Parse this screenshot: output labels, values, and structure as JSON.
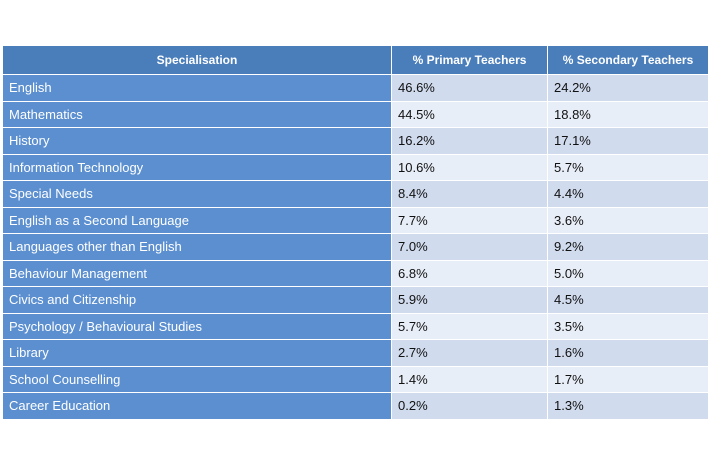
{
  "chart_data": {
    "type": "table",
    "columns": [
      "Specialisation",
      "% Primary Teachers",
      "% Secondary Teachers"
    ],
    "rows": [
      {
        "label": "English",
        "primary": "46.6%",
        "secondary": "24.2%"
      },
      {
        "label": "Mathematics",
        "primary": "44.5%",
        "secondary": "18.8%"
      },
      {
        "label": "History",
        "primary": "16.2%",
        "secondary": "17.1%"
      },
      {
        "label": "Information Technology",
        "primary": "10.6%",
        "secondary": "5.7%"
      },
      {
        "label": "Special Needs",
        "primary": "8.4%",
        "secondary": "4.4%"
      },
      {
        "label": "English as a Second Language",
        "primary": "7.7%",
        "secondary": "3.6%"
      },
      {
        "label": "Languages other than English",
        "primary": "7.0%",
        "secondary": "9.2%"
      },
      {
        "label": "Behaviour Management",
        "primary": "6.8%",
        "secondary": "5.0%"
      },
      {
        "label": "Civics and Citizenship",
        "primary": "5.9%",
        "secondary": "4.5%"
      },
      {
        "label": "Psychology / Behavioural Studies",
        "primary": "5.7%",
        "secondary": "3.5%"
      },
      {
        "label": "Library",
        "primary": "2.7%",
        "secondary": "1.6%"
      },
      {
        "label": "School Counselling",
        "primary": "1.4%",
        "secondary": "1.7%"
      },
      {
        "label": "Career Education",
        "primary": "0.2%",
        "secondary": "1.3%"
      }
    ]
  },
  "colors": {
    "header_bg": "#4a7ebb",
    "label_bg": "#5b8fd0",
    "row_odd": "#d0dbee",
    "row_even": "#e8eef8"
  }
}
